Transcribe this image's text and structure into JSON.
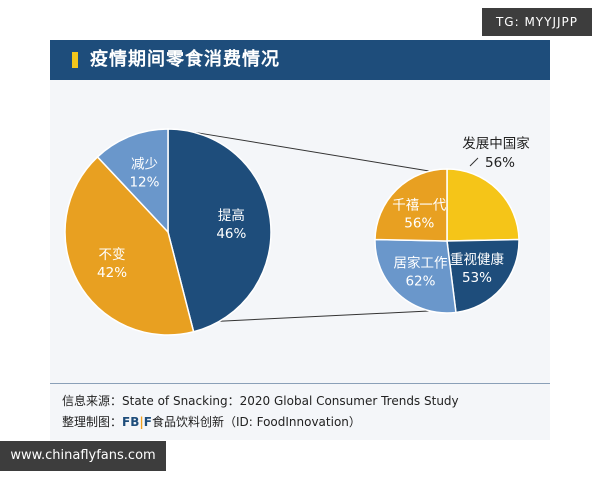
{
  "watermark_tag": "TG: MYYJJPP",
  "header": {
    "title": "疫情期间零食消费情况"
  },
  "source": {
    "line1": "信息来源：State of Snacking：2020 Global Consumer Trends Study",
    "line2_prefix": "整理制图：",
    "brand_fb": "FB",
    "brand_bar": "|",
    "brand_f": "F",
    "line2_suffix": "食品饮料创新（ID: FoodInnovation）"
  },
  "site_url": "www.chinaflyfans.com",
  "colors": {
    "blue": "#1e4d7b",
    "orange": "#e8a021",
    "lightblue": "#6a97cb",
    "yellow": "#f5c518"
  },
  "chart_data": [
    {
      "type": "pie",
      "title": "",
      "slices": [
        {
          "label": "提高",
          "value": 46,
          "display": "46%",
          "color": "#1e4d7b"
        },
        {
          "label": "不变",
          "value": 42,
          "display": "42%",
          "color": "#e8a021"
        },
        {
          "label": "减少",
          "value": 12,
          "display": "12%",
          "color": "#6a97cb"
        }
      ]
    },
    {
      "type": "pie",
      "title": "",
      "slices": [
        {
          "label": "发展中国家",
          "value": 56,
          "display": "56%",
          "color": "#f5c518"
        },
        {
          "label": "重视健康",
          "value": 53,
          "display": "53%",
          "color": "#1e4d7b"
        },
        {
          "label": "居家工作",
          "value": 62,
          "display": "62%",
          "color": "#6a97cb"
        },
        {
          "label": "千禧一代",
          "value": 56,
          "display": "56%",
          "color": "#e8a021"
        }
      ]
    }
  ]
}
